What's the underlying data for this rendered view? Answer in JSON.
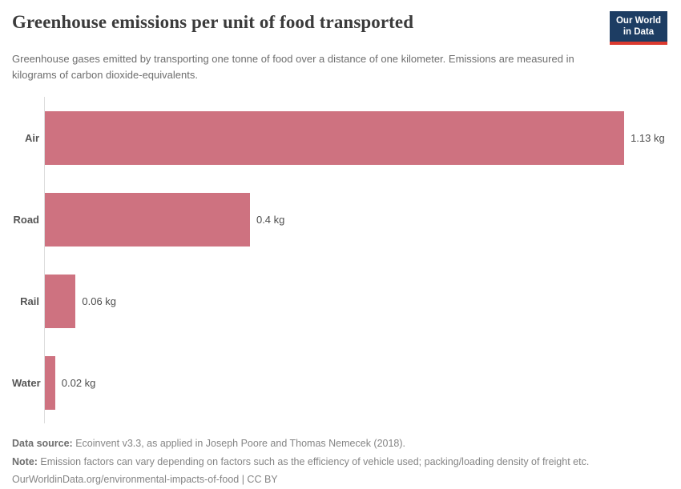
{
  "logo": {
    "line1": "Our World",
    "line2": "in Data"
  },
  "header": {
    "title": "Greenhouse emissions per unit of food transported",
    "subtitle": "Greenhouse gases emitted by transporting one tonne of food over a distance of one kilometer. Emissions are measured in kilograms of carbon dioxide-equivalents."
  },
  "chart_data": {
    "type": "bar",
    "orientation": "horizontal",
    "title": "Greenhouse emissions per unit of food transported",
    "categories": [
      "Air",
      "Road",
      "Rail",
      "Water"
    ],
    "values": [
      1.13,
      0.4,
      0.06,
      0.02
    ],
    "value_labels": [
      "1.13 kg",
      "0.4 kg",
      "0.06 kg",
      "0.02 kg"
    ],
    "unit": "kg CO2-equivalents per tonne-kilometer",
    "xlim": [
      0,
      1.2174
    ],
    "grid": false,
    "legend": "none"
  },
  "footer": {
    "data_source_label": "Data source:",
    "data_source_text": " Ecoinvent v3.3, as applied in Joseph Poore and Thomas Nemecek (2018).",
    "note_label": "Note:",
    "note_text": " Emission factors can vary depending on factors such as the efficiency of vehicle used; packing/loading density of freight etc.",
    "url_line": "OurWorldinData.org/environmental-impacts-of-food | CC BY"
  },
  "colors": {
    "bar": "#ce7280",
    "logo_navy": "#1d3d63",
    "logo_red": "#dc3a2f",
    "title": "#3b3b3b",
    "axis_line": "#dcdcdc"
  }
}
